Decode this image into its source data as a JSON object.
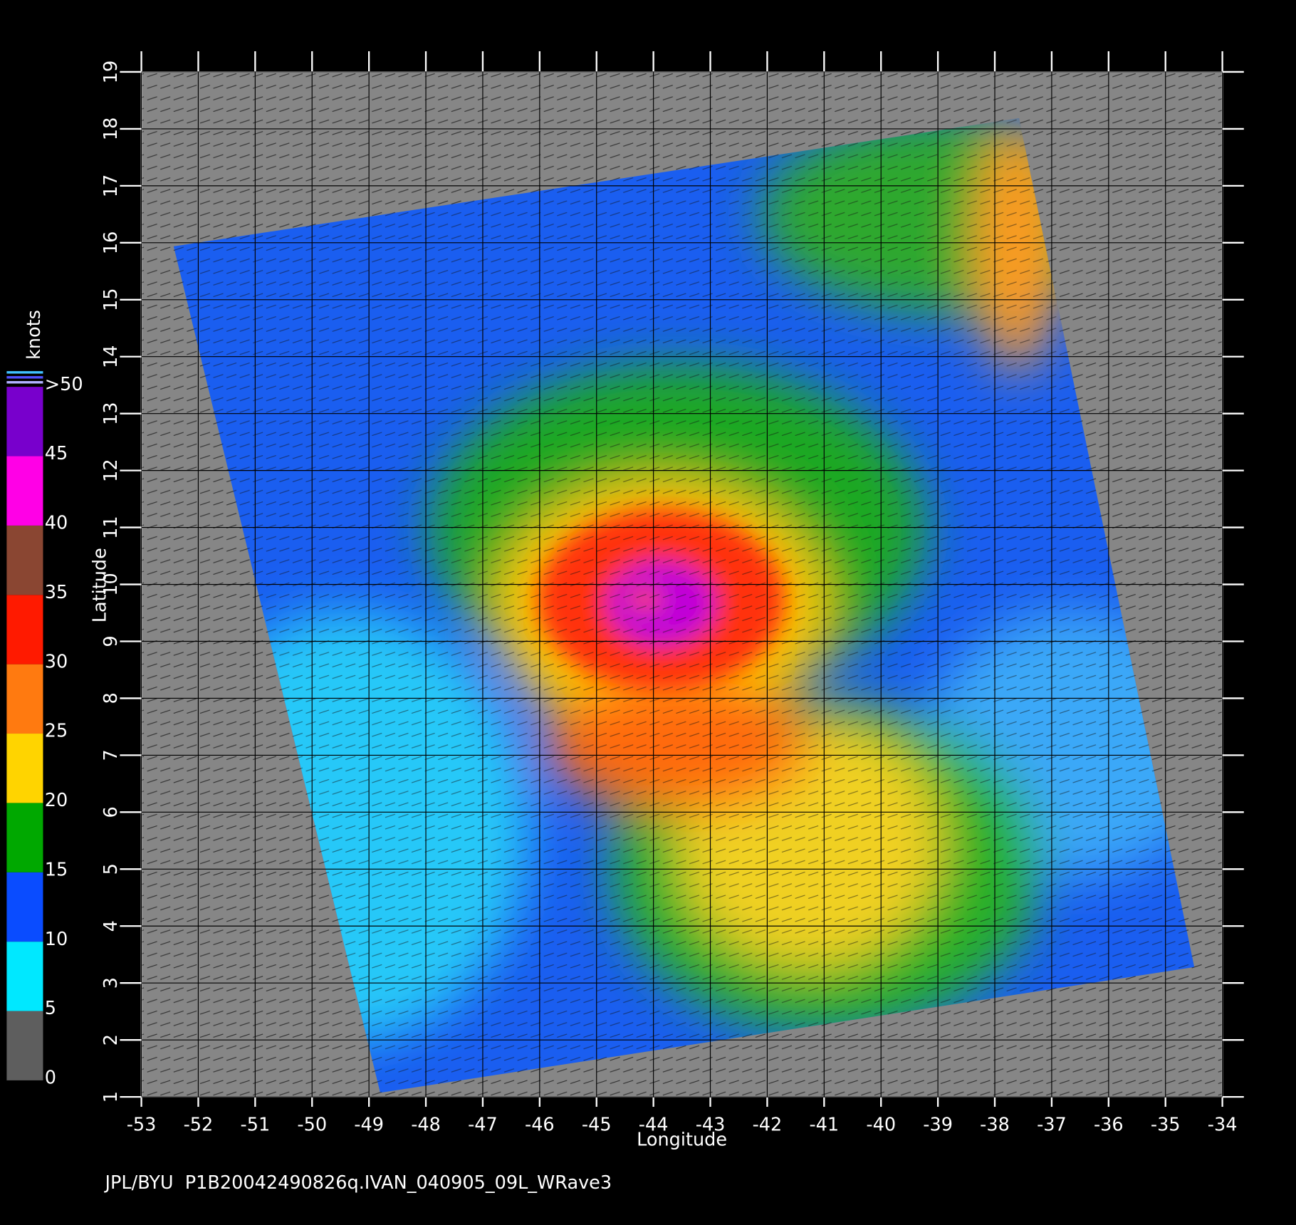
{
  "map": {
    "xlabel": "Longitude",
    "ylabel": "Latitude",
    "xlim": [
      -53,
      -34
    ],
    "ylim": [
      1,
      19
    ],
    "xticks": [
      -53,
      -52,
      -51,
      -50,
      -49,
      -48,
      -47,
      -46,
      -45,
      -44,
      -43,
      -42,
      -41,
      -40,
      -39,
      -38,
      -37,
      -36,
      -35,
      -34
    ],
    "yticks": [
      1,
      2,
      3,
      4,
      5,
      6,
      7,
      8,
      9,
      10,
      11,
      12,
      13,
      14,
      15,
      16,
      17,
      18,
      19
    ],
    "grid": true
  },
  "colorbar": {
    "title": "knots",
    "ticks": [
      0,
      5,
      10,
      15,
      20,
      25,
      30,
      35,
      40,
      45,
      {
        "value": 50,
        "label": ">50"
      }
    ],
    "colors": [
      "#5e5e5e",
      "#00e8ff",
      "#0a4cff",
      "#00a800",
      "#ffd400",
      "#ff7a10",
      "#ff1a00",
      "#8a4632",
      "#ff00e6",
      "#7800cc"
    ]
  },
  "caption": "JPL/BYU  P1B20042490826q.IVAN_040905_09L_WRave3"
}
